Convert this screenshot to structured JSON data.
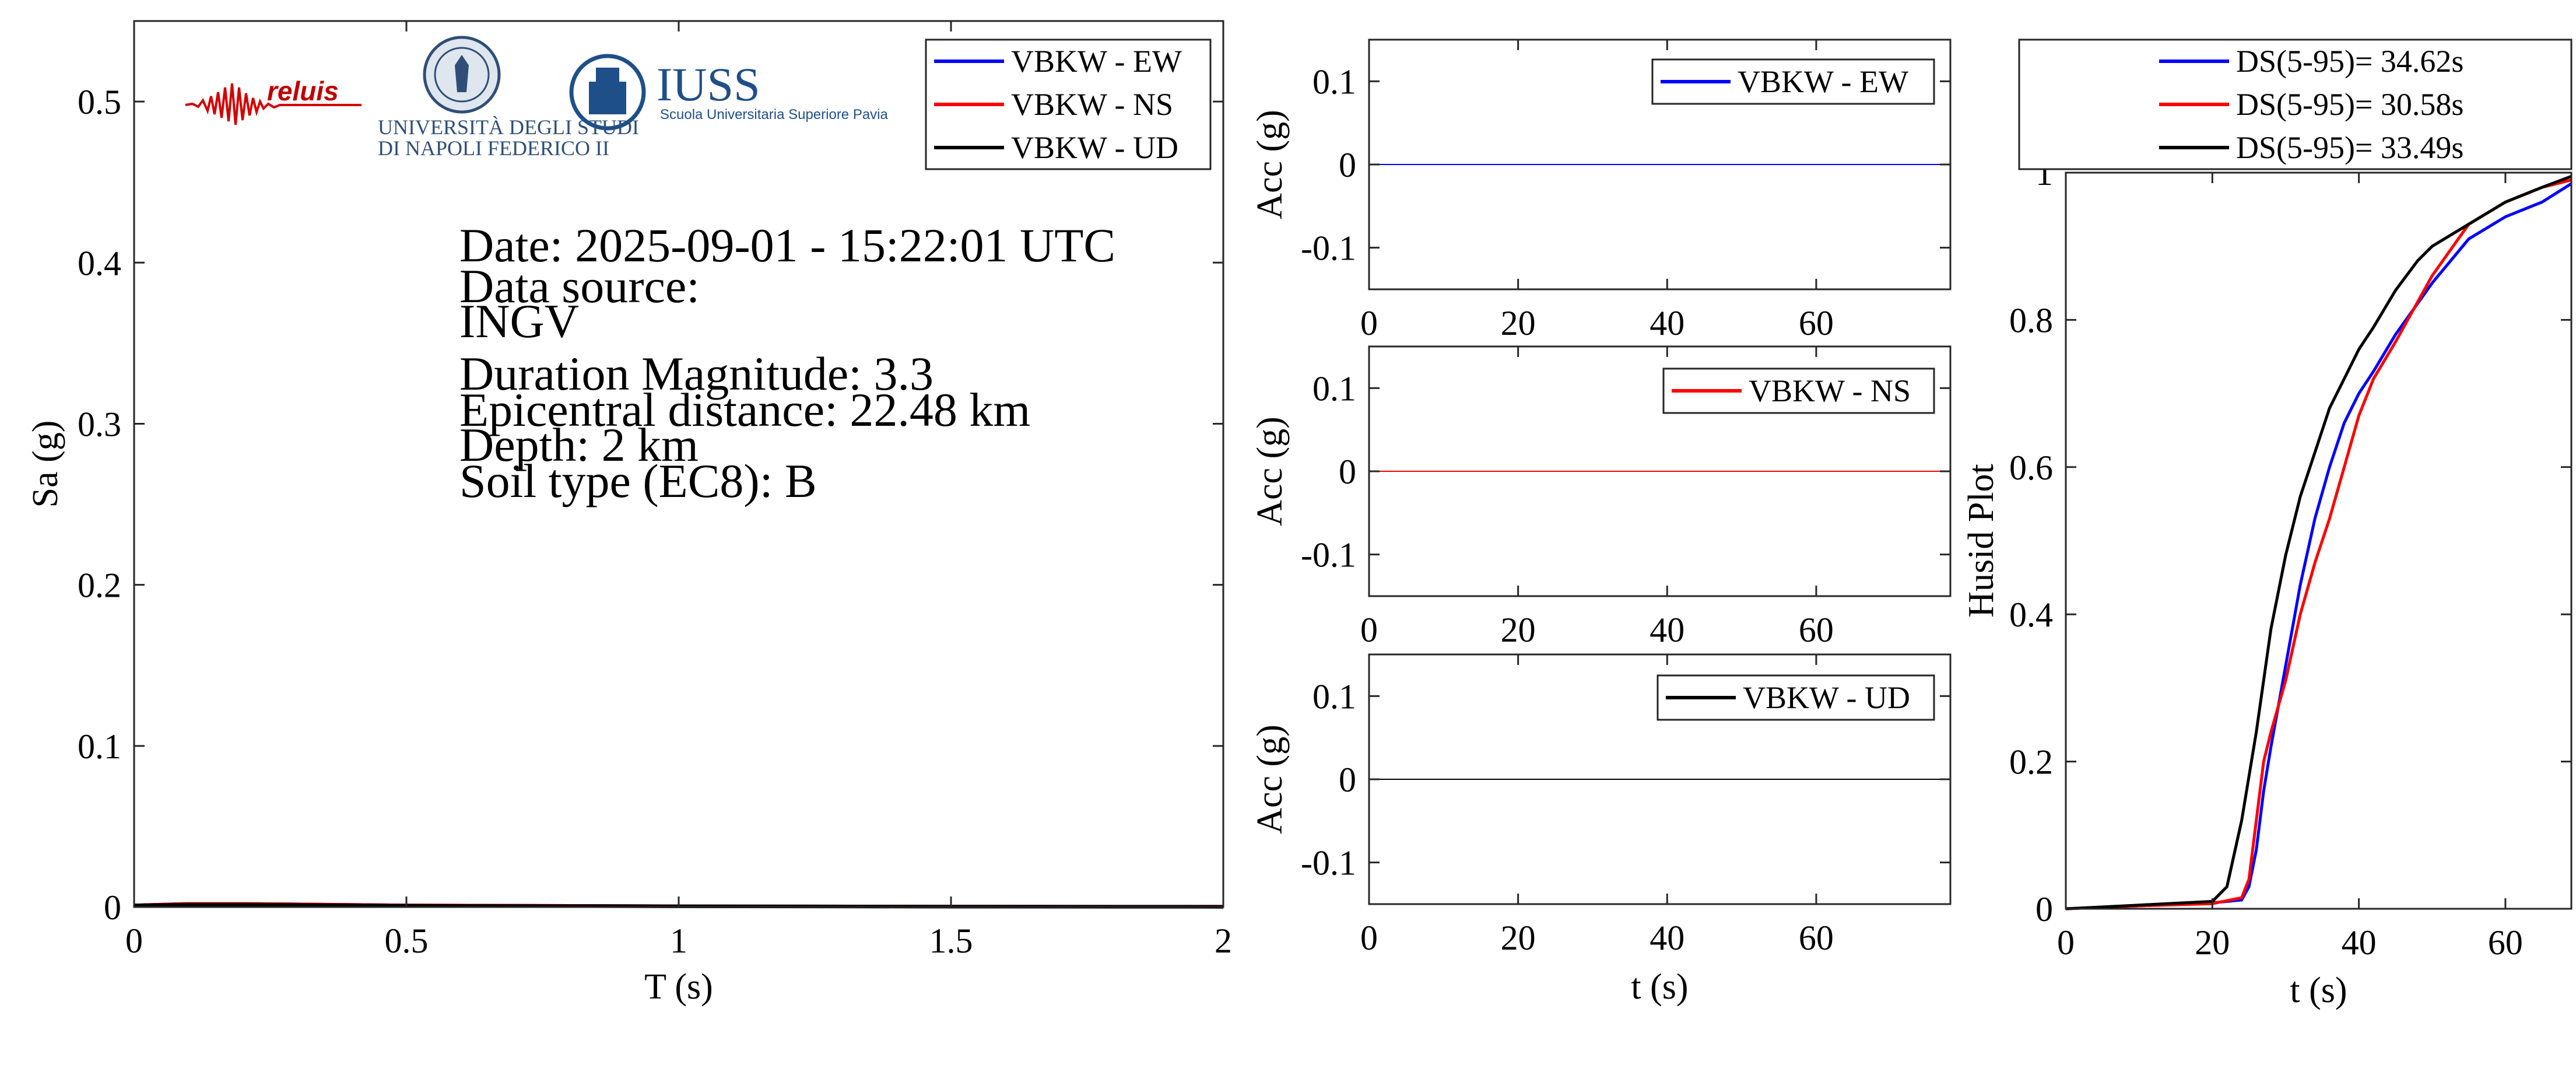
{
  "colors": {
    "ew": "#0000ff",
    "ns": "#ff0000",
    "ud": "#000000"
  },
  "logos": {
    "reluis": "reluis",
    "unina_line1": "UNIVERSITÀ DEGLI STUDI",
    "unina_line2": "DI NAPOLI FEDERICO II",
    "iuss_title": "IUSS",
    "iuss_subtitle": "Scuola Universitaria Superiore Pavia"
  },
  "event_info": {
    "date": "Date: 2025-09-01 - 15:22:01 UTC",
    "source_label": "Data source:",
    "source": "INGV",
    "magnitude": "Duration Magnitude: 3.3",
    "distance": "Epicentral distance: 22.48 km",
    "depth": "Depth: 2 km",
    "soil": "Soil type (EC8): B"
  },
  "chart_data": [
    {
      "type": "line",
      "id": "spectrum",
      "xlabel": "T (s)",
      "ylabel": "Sa (g)",
      "xlim": [
        0,
        2
      ],
      "ylim": [
        0,
        0.55
      ],
      "xticks": [
        0,
        0.5,
        1,
        1.5,
        2
      ],
      "xtick_labels": [
        "0",
        "0.5",
        "1",
        "1.5",
        "2"
      ],
      "yticks": [
        0,
        0.1,
        0.2,
        0.3,
        0.4,
        0.5
      ],
      "ytick_labels": [
        "0",
        "0.1",
        "0.2",
        "0.3",
        "0.4",
        "0.5"
      ],
      "legend_position": "top-right",
      "series": [
        {
          "name": "VBKW - EW",
          "color": "#0000ff",
          "x": [
            0,
            0.1,
            0.2,
            0.5,
            1,
            1.5,
            2
          ],
          "y": [
            0.001,
            0.002,
            0.002,
            0.001,
            0.0005,
            0.0003,
            0.0002
          ]
        },
        {
          "name": "VBKW - NS",
          "color": "#ff0000",
          "x": [
            0,
            0.1,
            0.2,
            0.5,
            1,
            1.5,
            2
          ],
          "y": [
            0.001,
            0.002,
            0.002,
            0.001,
            0.0005,
            0.0003,
            0.0002
          ]
        },
        {
          "name": "VBKW - UD",
          "color": "#000000",
          "x": [
            0,
            0.1,
            0.2,
            0.5,
            1,
            1.5,
            2
          ],
          "y": [
            0.001,
            0.0015,
            0.0015,
            0.0008,
            0.0004,
            0.0002,
            0.0001
          ]
        }
      ]
    },
    {
      "type": "line",
      "id": "acc_ew",
      "xlabel": "",
      "ylabel": "Acc (g)",
      "xlim": [
        0,
        78
      ],
      "ylim": [
        -0.15,
        0.15
      ],
      "xticks": [
        0,
        20,
        40,
        60
      ],
      "xtick_labels": [
        "0",
        "20",
        "40",
        "60"
      ],
      "yticks": [
        0.1,
        0,
        -0.1
      ],
      "ytick_labels": [
        "0.1",
        "0",
        "-0.1"
      ],
      "legend_position": "top-right",
      "series": [
        {
          "name": "VBKW - EW",
          "color": "#0000ff",
          "x": [
            0,
            78
          ],
          "y": [
            0,
            0
          ]
        }
      ]
    },
    {
      "type": "line",
      "id": "acc_ns",
      "xlabel": "",
      "ylabel": "Acc (g)",
      "xlim": [
        0,
        78
      ],
      "ylim": [
        -0.15,
        0.15
      ],
      "xticks": [
        0,
        20,
        40,
        60
      ],
      "xtick_labels": [
        "0",
        "20",
        "40",
        "60"
      ],
      "yticks": [
        0.1,
        0,
        -0.1
      ],
      "ytick_labels": [
        "0.1",
        "0",
        "-0.1"
      ],
      "legend_position": "top-right",
      "series": [
        {
          "name": "VBKW - NS",
          "color": "#ff0000",
          "x": [
            0,
            78
          ],
          "y": [
            0,
            0
          ]
        }
      ]
    },
    {
      "type": "line",
      "id": "acc_ud",
      "xlabel": "t (s)",
      "ylabel": "Acc (g)",
      "xlim": [
        0,
        78
      ],
      "ylim": [
        -0.15,
        0.15
      ],
      "xticks": [
        0,
        20,
        40,
        60
      ],
      "xtick_labels": [
        "0",
        "20",
        "40",
        "60"
      ],
      "yticks": [
        0.1,
        0,
        -0.1
      ],
      "ytick_labels": [
        "0.1",
        "0",
        "-0.1"
      ],
      "legend_position": "top-right",
      "series": [
        {
          "name": "VBKW - UD",
          "color": "#000000",
          "x": [
            0,
            78
          ],
          "y": [
            0,
            0
          ]
        }
      ]
    },
    {
      "type": "line",
      "id": "husid",
      "xlabel": "t (s)",
      "ylabel": "Husid Plot",
      "xlim": [
        0,
        69
      ],
      "ylim": [
        0,
        1
      ],
      "xticks": [
        0,
        20,
        40,
        60
      ],
      "xtick_labels": [
        "0",
        "20",
        "40",
        "60"
      ],
      "yticks": [
        0,
        0.2,
        0.4,
        0.6,
        0.8,
        1
      ],
      "ytick_labels": [
        "0",
        "0.2",
        "0.4",
        "0.6",
        "0.8",
        "1"
      ],
      "legend_position": "above",
      "series": [
        {
          "name": "DS(5-95)= 34.62s",
          "color": "#0000ff",
          "x": [
            0,
            10,
            20,
            24,
            25,
            26,
            27,
            28,
            30,
            32,
            34,
            36,
            38,
            40,
            42,
            45,
            50,
            55,
            60,
            65,
            69
          ],
          "y": [
            0,
            0.004,
            0.008,
            0.012,
            0.03,
            0.08,
            0.16,
            0.22,
            0.33,
            0.44,
            0.53,
            0.6,
            0.66,
            0.7,
            0.73,
            0.78,
            0.85,
            0.91,
            0.94,
            0.96,
            0.985
          ]
        },
        {
          "name": "DS(5-95)= 30.58s",
          "color": "#ff0000",
          "x": [
            0,
            10,
            20,
            24,
            25,
            26,
            27,
            28,
            30,
            32,
            34,
            36,
            38,
            40,
            42,
            45,
            50,
            55,
            60,
            65,
            69
          ],
          "y": [
            0,
            0.004,
            0.007,
            0.015,
            0.04,
            0.12,
            0.2,
            0.24,
            0.31,
            0.4,
            0.47,
            0.53,
            0.6,
            0.67,
            0.72,
            0.77,
            0.86,
            0.93,
            0.96,
            0.98,
            0.99
          ]
        },
        {
          "name": "DS(5-95)= 33.49s",
          "color": "#000000",
          "x": [
            0,
            10,
            20,
            22,
            24,
            26,
            28,
            30,
            32,
            34,
            36,
            38,
            40,
            42,
            45,
            48,
            50,
            55,
            60,
            65,
            69
          ],
          "y": [
            0,
            0.005,
            0.01,
            0.03,
            0.12,
            0.24,
            0.38,
            0.48,
            0.56,
            0.62,
            0.68,
            0.72,
            0.76,
            0.79,
            0.84,
            0.88,
            0.9,
            0.93,
            0.96,
            0.98,
            0.995
          ]
        }
      ]
    }
  ]
}
